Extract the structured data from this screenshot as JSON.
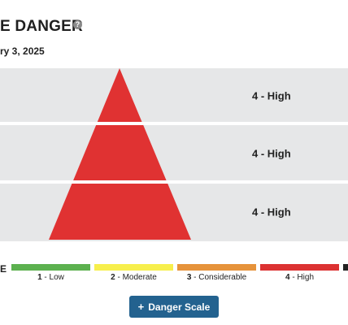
{
  "header": {
    "title": "E DANGER",
    "help_glyph": "?",
    "date": "ry 3, 2025"
  },
  "bands": [
    {
      "label": "4 - High",
      "level": 4
    },
    {
      "label": "4 - High",
      "level": 4
    },
    {
      "label": "4 - High",
      "level": 4
    }
  ],
  "colors": {
    "band_bg": "#e6e7e8",
    "pyramid": "#e03232",
    "button": "#23628f"
  },
  "scale": {
    "title": "E",
    "items": [
      {
        "num": "1",
        "label": " - Low",
        "color": "#5cb14f"
      },
      {
        "num": "2",
        "label": " - Moderate",
        "color": "#f7ef4c"
      },
      {
        "num": "3",
        "label": " - Considerable",
        "color": "#e6933b"
      },
      {
        "num": "4",
        "label": " - High",
        "color": "#dc3232"
      },
      {
        "num": "",
        "label": "",
        "color": "#222222"
      }
    ]
  },
  "button": {
    "icon": "plus-icon",
    "label": "Danger Scale"
  }
}
